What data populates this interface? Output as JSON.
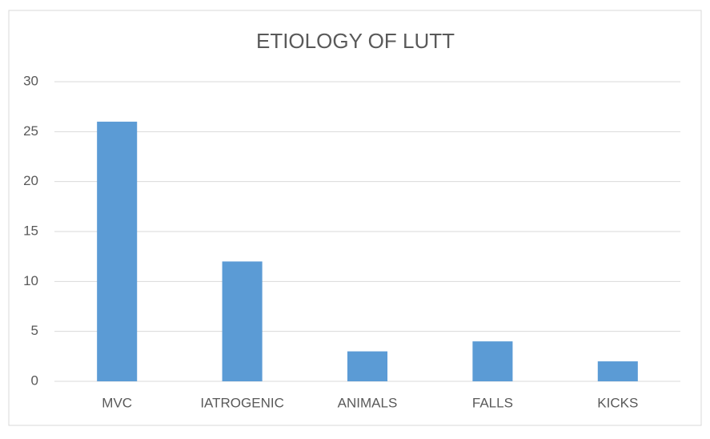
{
  "chart_data": {
    "type": "bar",
    "title": "ETIOLOGY OF LUTT",
    "categories": [
      "MVC",
      "IATROGENIC",
      "ANIMALS",
      "FALLS",
      "KICKS"
    ],
    "values": [
      26,
      12,
      3,
      4,
      2
    ],
    "color": "#5b9bd5",
    "ylim": [
      0,
      30
    ],
    "yticks": [
      0,
      5,
      10,
      15,
      20,
      25,
      30
    ],
    "grid": true
  }
}
